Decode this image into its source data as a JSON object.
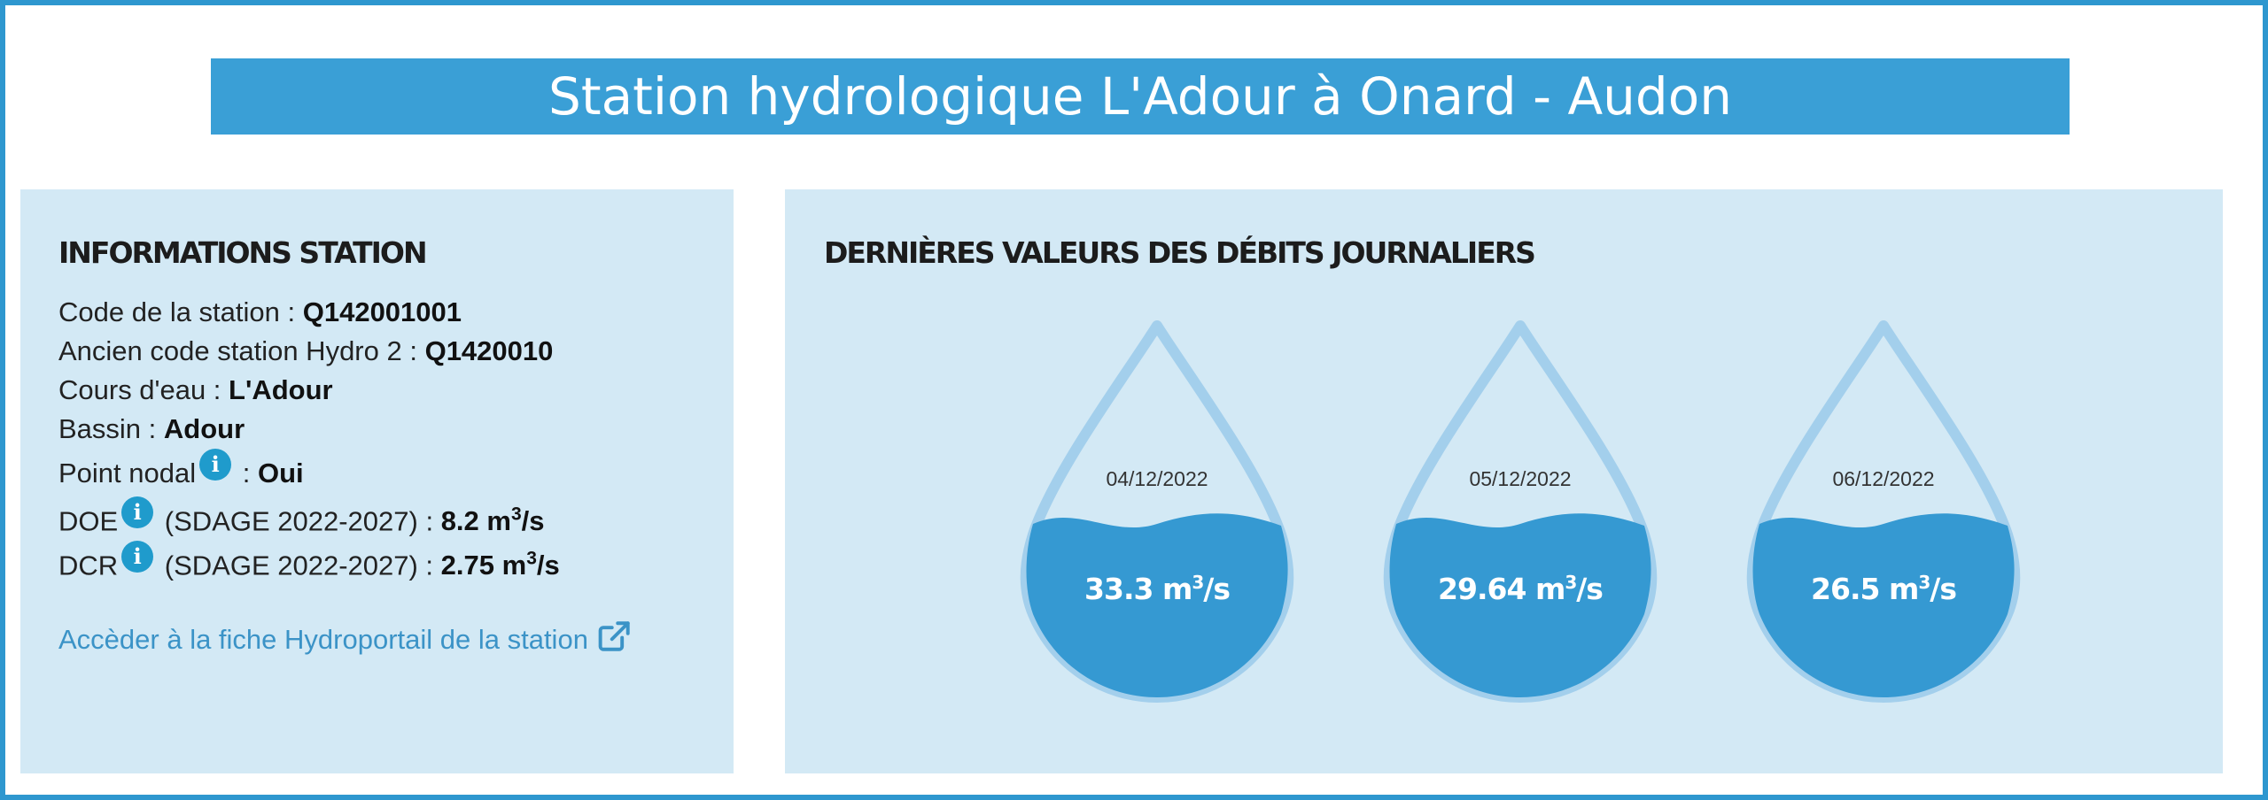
{
  "header": {
    "title": "Station hydrologique L'Adour à Onard - Audon"
  },
  "info": {
    "heading": "INFORMATIONS STATION",
    "rows": [
      {
        "label": "Code de la station : ",
        "value": "Q142001001"
      },
      {
        "label": "Ancien code station Hydro 2 : ",
        "value": "Q1420010"
      },
      {
        "label": "Cours d'eau : ",
        "value": "L'Adour"
      },
      {
        "label": "Bassin : ",
        "value": "Adour"
      },
      {
        "label": "Point nodal",
        "suffix": " : ",
        "value": "Oui"
      },
      {
        "label": "DOE",
        "suffix": " (SDAGE 2022-2027) : ",
        "value": "8.2 m",
        "sup": "3",
        "unit_tail": "/s"
      },
      {
        "label": "DCR",
        "suffix": " (SDAGE 2022-2027) : ",
        "value": "2.75 m",
        "sup": "3",
        "unit_tail": "/s"
      }
    ],
    "info_icon_glyph": "i",
    "link_label": "Accèder à la fiche Hydroportail de la station"
  },
  "flows": {
    "heading": "DERNIÈRES VALEURS DES DÉBITS JOURNALIERS",
    "unit_base": "m",
    "unit_sup": "3",
    "unit_tail": "/s",
    "items": [
      {
        "date": "04/12/2022",
        "value": "33.3"
      },
      {
        "date": "05/12/2022",
        "value": "29.64"
      },
      {
        "date": "06/12/2022",
        "value": "26.5"
      }
    ]
  },
  "colors": {
    "frame": "#2e97cf",
    "title_bar": "#3a9fd6",
    "panel_bg": "#d3e9f5",
    "drop_outline": "#a3cfec",
    "water": "#3599d2",
    "link": "#3b93c7",
    "info_icon": "#1f9bcc"
  }
}
